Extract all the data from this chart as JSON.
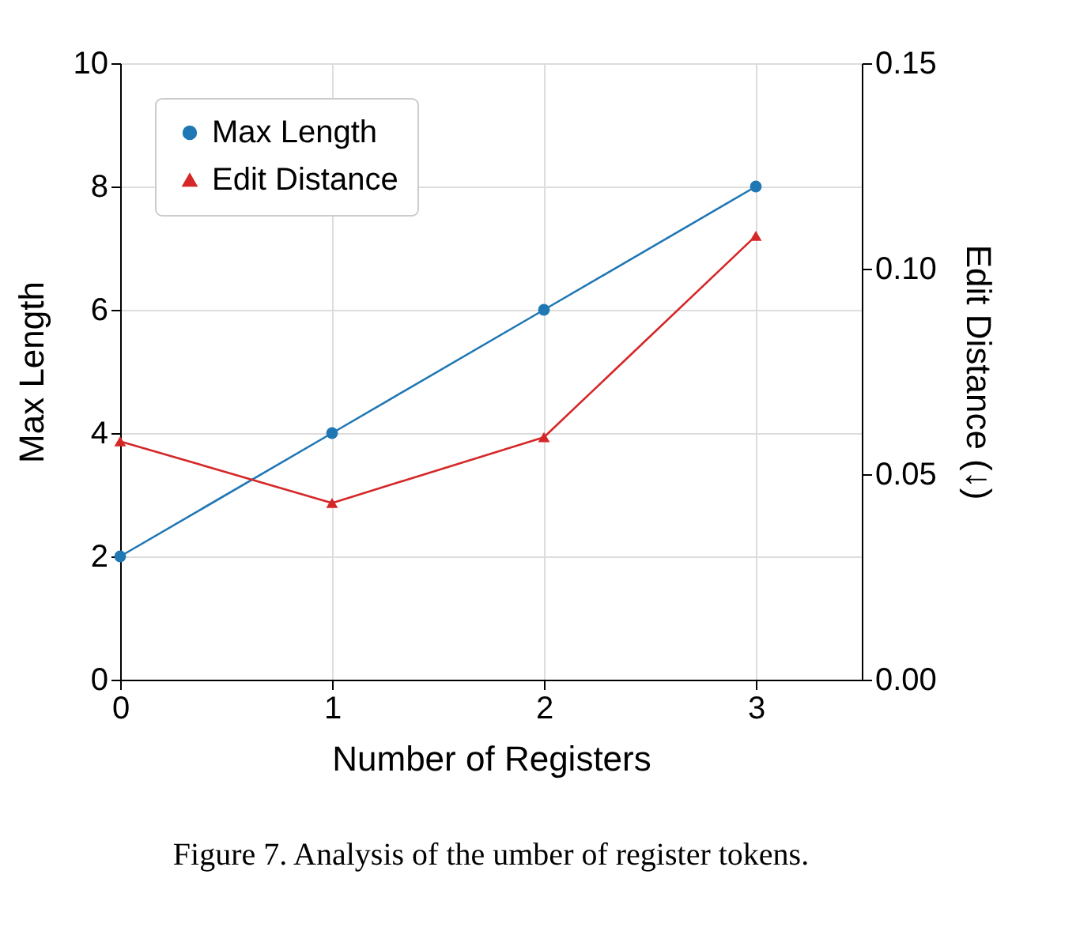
{
  "chart_data": {
    "type": "line",
    "x": [
      0,
      1,
      2,
      3
    ],
    "xlim": [
      0,
      3.5
    ],
    "xticks": [
      0,
      1,
      2,
      3
    ],
    "ylim": [
      0,
      10
    ],
    "yticks": [
      0,
      2,
      4,
      6,
      8,
      10
    ],
    "y2lim": [
      0,
      0.15
    ],
    "y2ticks": [
      {
        "value": 0,
        "label": "0.00"
      },
      {
        "value": 0.05,
        "label": "0.05"
      },
      {
        "value": 0.1,
        "label": "0.10"
      },
      {
        "value": 0.15,
        "label": "0.15"
      }
    ],
    "xlabel": "Number of Registers",
    "ylabel": "Max Length",
    "y2label": "Edit Distance (↓)",
    "series": [
      {
        "name": "Max Length",
        "color": "#1f77b4",
        "marker": "circle",
        "values": [
          2,
          4,
          6,
          8
        ]
      },
      {
        "name": "Edit Distance",
        "color": "#d62728",
        "marker": "triangle",
        "axis": "y2",
        "values": [
          0.058,
          0.043,
          0.059,
          0.108
        ]
      }
    ],
    "grid": true,
    "legend": "top left",
    "line_style": "solid",
    "annotations": [
      "Figure 7. Analysis of the umber of register tokens."
    ]
  }
}
